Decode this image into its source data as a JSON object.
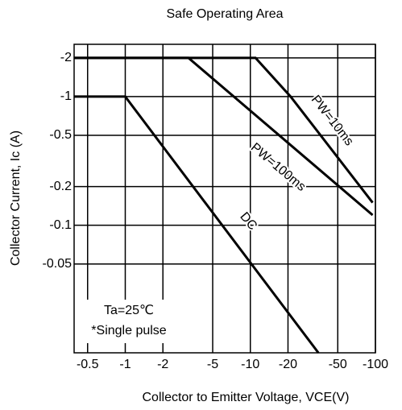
{
  "chart_data": {
    "type": "line",
    "title": "Safe Operating Area",
    "x_label": "Collector to Emitter Voltage, VCE(V)",
    "y_label": "Collector Current, Ic (A)",
    "log_x": true,
    "log_y": true,
    "grid": true,
    "xlim": [
      -0.39,
      -100
    ],
    "ylim": [
      -0.0102,
      -2.55
    ],
    "xticks": [
      -0.5,
      -1,
      -2,
      -5,
      -10,
      -20,
      -50,
      -100
    ],
    "yticks": [
      -2,
      -1,
      -0.5,
      -0.2,
      -0.1,
      -0.05
    ],
    "series": [
      {
        "name": "PW=10ms",
        "color": "#000000",
        "x": [
          -0.39,
          -11,
          -21,
          -95
        ],
        "values": [
          -2,
          -2,
          -1,
          -0.15
        ]
      },
      {
        "name": "PW=100ms",
        "color": "#000000",
        "x": [
          -0.39,
          -3.2,
          -95
        ],
        "values": [
          -2,
          -2,
          -0.12
        ]
      },
      {
        "name": "DC",
        "color": "#000000",
        "x": [
          -0.39,
          -1,
          -35
        ],
        "values": [
          -1,
          -1,
          -0.0102
        ]
      }
    ],
    "annotations": [
      "Ta=25℃",
      "*Single pulse"
    ]
  }
}
